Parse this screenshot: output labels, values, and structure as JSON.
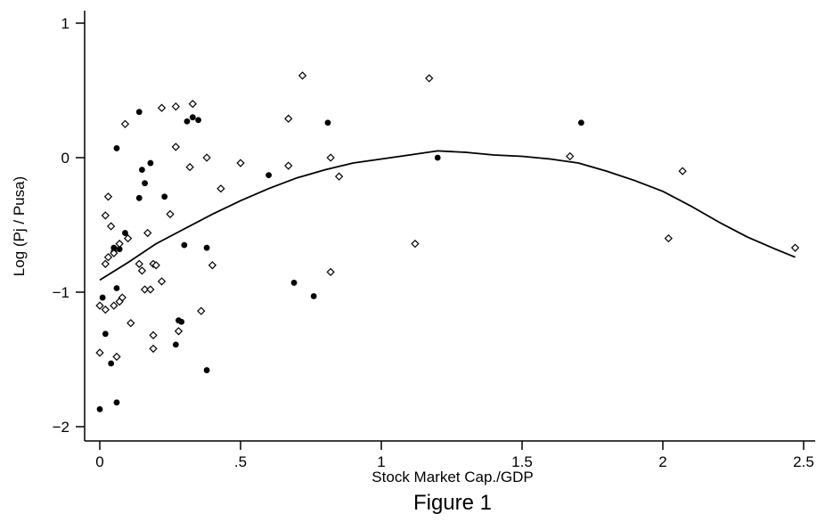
{
  "chart_data": {
    "type": "scatter",
    "xlabel": "Stock Market Cap./GDP",
    "ylabel": "Log (Pj / Pusa)",
    "caption": "Figure 1",
    "xlim": [
      -0.05,
      2.55
    ],
    "ylim": [
      -2.1,
      1.1
    ],
    "xticks": [
      {
        "value": 0,
        "label": "0"
      },
      {
        "value": 0.5,
        "label": ".5"
      },
      {
        "value": 1,
        "label": "1"
      },
      {
        "value": 1.5,
        "label": "1.5"
      },
      {
        "value": 2,
        "label": "2"
      },
      {
        "value": 2.5,
        "label": "2.5"
      }
    ],
    "yticks": [
      {
        "value": 1,
        "label": "1"
      },
      {
        "value": 0,
        "label": "0"
      },
      {
        "value": -1,
        "label": "−1"
      },
      {
        "value": -2,
        "label": "−2"
      }
    ],
    "grid": false,
    "series": [
      {
        "marker": "filled-circle",
        "color": "#000000",
        "points": [
          [
            0.14,
            0.34
          ],
          [
            0.06,
            0.07
          ],
          [
            0.15,
            -0.09
          ],
          [
            0.18,
            -0.04
          ],
          [
            0.16,
            -0.19
          ],
          [
            0.14,
            -0.3
          ],
          [
            0.23,
            -0.29
          ],
          [
            0.31,
            0.27
          ],
          [
            0.33,
            0.3
          ],
          [
            0.35,
            0.28
          ],
          [
            0.81,
            0.26
          ],
          [
            0.01,
            -1.04
          ],
          [
            0.02,
            -1.31
          ],
          [
            0.0,
            -1.87
          ],
          [
            0.06,
            -1.82
          ],
          [
            0.04,
            -1.53
          ],
          [
            0.05,
            -0.7
          ],
          [
            0.07,
            -0.68
          ],
          [
            0.05,
            -0.67
          ],
          [
            0.09,
            -0.56
          ],
          [
            0.06,
            -0.97
          ],
          [
            0.28,
            -1.21
          ],
          [
            0.29,
            -1.22
          ],
          [
            0.27,
            -1.39
          ],
          [
            0.38,
            -1.58
          ],
          [
            0.3,
            -0.65
          ],
          [
            0.38,
            -0.67
          ],
          [
            0.6,
            -0.13
          ],
          [
            0.69,
            -0.93
          ],
          [
            0.76,
            -1.03
          ],
          [
            1.2,
            0.0
          ],
          [
            1.71,
            0.26
          ]
        ]
      },
      {
        "marker": "open-diamond",
        "color": "#000000",
        "points": [
          [
            0.09,
            0.25
          ],
          [
            0.22,
            0.37
          ],
          [
            0.27,
            0.38
          ],
          [
            0.33,
            0.4
          ],
          [
            0.27,
            0.08
          ],
          [
            0.32,
            -0.07
          ],
          [
            0.38,
            0.0
          ],
          [
            0.43,
            -0.23
          ],
          [
            0.5,
            -0.04
          ],
          [
            0.67,
            0.29
          ],
          [
            0.72,
            0.61
          ],
          [
            0.67,
            -0.06
          ],
          [
            0.82,
            0.0
          ],
          [
            0.85,
            -0.14
          ],
          [
            1.17,
            0.59
          ],
          [
            0.25,
            -0.42
          ],
          [
            0.17,
            -0.56
          ],
          [
            0.02,
            -0.43
          ],
          [
            0.03,
            -0.29
          ],
          [
            0.04,
            -0.51
          ],
          [
            0.02,
            -0.79
          ],
          [
            0.03,
            -0.74
          ],
          [
            0.05,
            -0.71
          ],
          [
            0.07,
            -0.64
          ],
          [
            0.1,
            -0.6
          ],
          [
            0.14,
            -0.79
          ],
          [
            0.15,
            -0.84
          ],
          [
            0.16,
            -0.98
          ],
          [
            0.19,
            -0.79
          ],
          [
            0.2,
            -0.8
          ],
          [
            0.18,
            -0.98
          ],
          [
            0.22,
            -0.92
          ],
          [
            0.4,
            -0.8
          ],
          [
            0.0,
            -1.1
          ],
          [
            0.02,
            -1.13
          ],
          [
            0.05,
            -1.1
          ],
          [
            0.07,
            -1.07
          ],
          [
            0.08,
            -1.04
          ],
          [
            0.11,
            -1.23
          ],
          [
            0.19,
            -1.32
          ],
          [
            0.19,
            -1.42
          ],
          [
            0.06,
            -1.48
          ],
          [
            0.0,
            -1.45
          ],
          [
            0.28,
            -1.29
          ],
          [
            0.36,
            -1.14
          ],
          [
            0.82,
            -0.85
          ],
          [
            1.12,
            -0.64
          ],
          [
            1.67,
            0.01
          ],
          [
            2.02,
            -0.6
          ],
          [
            2.07,
            -0.1
          ],
          [
            2.47,
            -0.67
          ]
        ]
      },
      {
        "type": "line",
        "color": "#000000",
        "points": [
          [
            0.0,
            -0.91
          ],
          [
            0.1,
            -0.78
          ],
          [
            0.2,
            -0.64
          ],
          [
            0.3,
            -0.53
          ],
          [
            0.4,
            -0.42
          ],
          [
            0.5,
            -0.32
          ],
          [
            0.6,
            -0.23
          ],
          [
            0.7,
            -0.15
          ],
          [
            0.8,
            -0.09
          ],
          [
            0.9,
            -0.04
          ],
          [
            1.0,
            -0.01
          ],
          [
            1.1,
            0.02
          ],
          [
            1.2,
            0.05
          ],
          [
            1.3,
            0.04
          ],
          [
            1.4,
            0.02
          ],
          [
            1.5,
            0.01
          ],
          [
            1.6,
            -0.01
          ],
          [
            1.7,
            -0.04
          ],
          [
            1.8,
            -0.1
          ],
          [
            1.9,
            -0.17
          ],
          [
            2.0,
            -0.25
          ],
          [
            2.1,
            -0.36
          ],
          [
            2.2,
            -0.48
          ],
          [
            2.3,
            -0.59
          ],
          [
            2.4,
            -0.68
          ],
          [
            2.47,
            -0.74
          ]
        ]
      }
    ]
  }
}
